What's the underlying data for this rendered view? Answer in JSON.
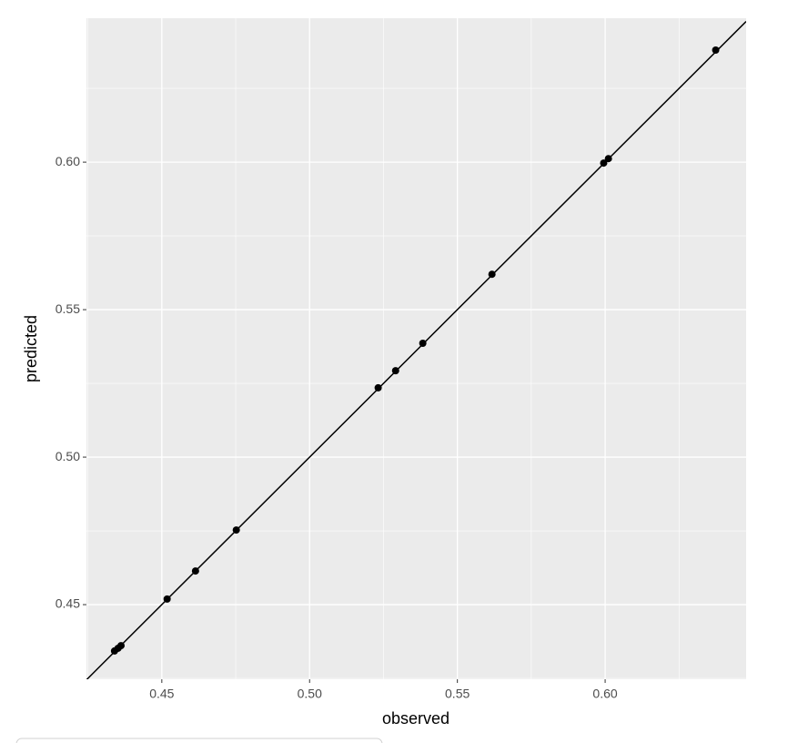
{
  "chart_data": {
    "type": "scatter",
    "x_label": "observed",
    "y_label": "predicted",
    "x": [
      0.434,
      0.4352,
      0.4362,
      0.4518,
      0.4614,
      0.4752,
      0.5232,
      0.5291,
      0.5383,
      0.5617,
      0.5995,
      0.6011,
      0.6374
    ],
    "values": [
      0.4343,
      0.4352,
      0.4361,
      0.4519,
      0.4614,
      0.4753,
      0.5235,
      0.5293,
      0.5386,
      0.562,
      0.5997,
      0.6012,
      0.638
    ],
    "color": "#000000",
    "reference_line": {
      "intercept": 0,
      "slope": 1,
      "color": "#000000"
    },
    "xlim": [
      0.4245,
      0.6477
    ],
    "ylim": [
      0.4247,
      0.6488
    ],
    "xticks": [
      {
        "value": 0.45,
        "label": "0.45"
      },
      {
        "value": 0.5,
        "label": "0.50"
      },
      {
        "value": 0.55,
        "label": "0.55"
      },
      {
        "value": 0.6,
        "label": "0.60"
      }
    ],
    "yticks": [
      {
        "value": 0.45,
        "label": "0.45"
      },
      {
        "value": 0.5,
        "label": "0.50"
      },
      {
        "value": 0.55,
        "label": "0.55"
      },
      {
        "value": 0.6,
        "label": "0.60"
      }
    ],
    "grid": true,
    "panel_color": "#ebebeb"
  }
}
